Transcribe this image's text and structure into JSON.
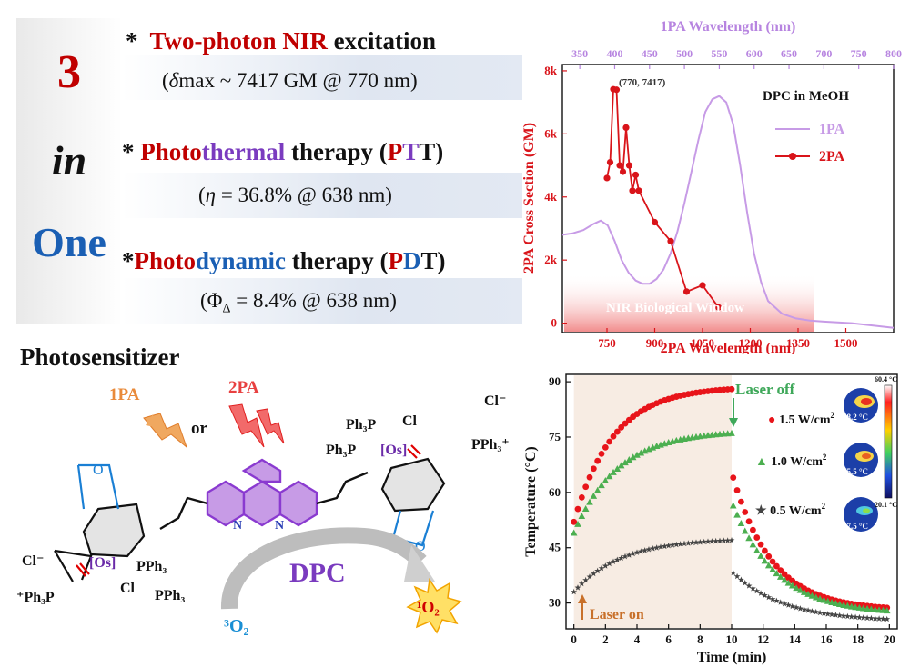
{
  "claims": {
    "big_number": "3",
    "big_in": "in",
    "big_one": "One",
    "item1": {
      "star": "*",
      "a": "Two-photon ",
      "b": "NIR",
      "c": " excitation",
      "detail_pre": "(",
      "detail_sym": "δ",
      "detail_post": "max ~ 7417 GM @ 770 nm)"
    },
    "item2": {
      "star": "*",
      "a": "Photo",
      "b": "thermal",
      "c": " therapy (",
      "d": "P",
      "e": "T",
      "f": "T",
      "g": ")",
      "detail_pre": "(",
      "detail_sym": "η",
      "detail_post": " = 36.8% @ 638 nm)"
    },
    "item3": {
      "star": "*",
      "a": "Photo",
      "b": "dynamic",
      "c": " therapy (",
      "d": "P",
      "e": "D",
      "f": "T",
      "g": ")",
      "detail_pre": "(Φ",
      "detail_sub": "Δ",
      "detail_post": " = 8.4% @ 638 nm)"
    }
  },
  "photosensitizer": {
    "title": "Photosensitizer",
    "one_pa": "1PA",
    "or": "or",
    "two_pa": "2PA",
    "dpc": "DPC",
    "cl_minus": "Cl⁻",
    "n_label": "N",
    "os_label": "[Os]",
    "cl": "Cl",
    "ph3p": "Ph₃P",
    "pph3": "PPh₃",
    "pph3_plus": "PPh₃⁺",
    "plus_ph3p": "⁺Ph₃P",
    "o_label": "O",
    "triplet_o2": "³O₂",
    "singlet_o2": "¹O₂"
  },
  "colors": {
    "red": "#c00000",
    "purple": "#7a3bbf",
    "blue": "#1a5fb4",
    "orange": "#e98a3a",
    "green": "#5cb85c"
  },
  "chart_data": [
    {
      "type": "line",
      "title": "",
      "legend_title": "DPC in MeOH",
      "annotation": "(770, 7417)",
      "window_label": "NIR Biological Window",
      "xlabel": "2PA Wavelength (nm)",
      "x2label": "1PA Wavelength (nm)",
      "ylabel": "2PA Cross Section (GM)",
      "xlim": [
        610,
        1650
      ],
      "x2lim": [
        325,
        800
      ],
      "ylim": [
        -300,
        8200
      ],
      "xticks": [
        750,
        900,
        1050,
        1200,
        1350,
        1500
      ],
      "x2ticks": [
        350,
        400,
        450,
        500,
        550,
        600,
        650,
        700,
        750,
        800
      ],
      "yticks": [
        0,
        2000,
        4000,
        6000,
        8000
      ],
      "ytick_labels": [
        "0",
        "2k",
        "4k",
        "6k",
        "8k"
      ],
      "series": [
        {
          "name": "1PA",
          "axis": "x2",
          "color": "#c79be6",
          "x": [
            325,
            340,
            355,
            370,
            380,
            390,
            400,
            410,
            420,
            430,
            440,
            450,
            460,
            470,
            480,
            490,
            500,
            510,
            520,
            530,
            540,
            550,
            560,
            570,
            580,
            590,
            600,
            610,
            620,
            640,
            660,
            680,
            700,
            740,
            800
          ],
          "y": [
            2800,
            2850,
            2950,
            3150,
            3250,
            3100,
            2600,
            2000,
            1600,
            1350,
            1250,
            1250,
            1400,
            1700,
            2200,
            2900,
            3800,
            4800,
            5800,
            6700,
            7100,
            7200,
            7000,
            6300,
            5000,
            3500,
            2200,
            1300,
            700,
            300,
            150,
            80,
            50,
            0,
            -150
          ]
        },
        {
          "name": "2PA",
          "axis": "x",
          "color": "#d9141a",
          "x": [
            750,
            760,
            770,
            780,
            790,
            800,
            810,
            820,
            830,
            840,
            850,
            900,
            950,
            1000,
            1050,
            1100
          ],
          "y": [
            4600,
            5100,
            7417,
            7400,
            5000,
            4800,
            6200,
            5000,
            4200,
            4700,
            4200,
            3200,
            2600,
            1000,
            1200,
            500
          ]
        }
      ]
    },
    {
      "type": "scatter",
      "xlabel": "Time (min)",
      "ylabel": "Temperature (°C)",
      "xlim": [
        -0.5,
        20.5
      ],
      "ylim": [
        23,
        92
      ],
      "xticks": [
        0,
        2,
        4,
        6,
        8,
        10,
        12,
        14,
        16,
        18,
        20
      ],
      "yticks": [
        30,
        45,
        60,
        75,
        90
      ],
      "annotations": {
        "laser_on": "Laser on",
        "laser_off": "Laser off"
      },
      "colorbar": {
        "max": "60.4 °C",
        "min": "20.1 °C"
      },
      "series": [
        {
          "name": "1.5 W/cm²",
          "power": "1.5 W/cm",
          "sup": "2",
          "marker": "circle",
          "color": "#e8141a",
          "t_peak": 88,
          "t_start": 52,
          "t_end": 28,
          "tau_heat": 2.5,
          "tau_cool": 2.5,
          "thermal_image": "88.2 °C"
        },
        {
          "name": "1.0 W/cm²",
          "power": "1.0 W/cm",
          "sup": "2",
          "marker": "triangle",
          "color": "#4caf50",
          "t_peak": 76,
          "t_start": 49,
          "t_end": 27,
          "tau_heat": 2.8,
          "tau_cool": 2.8,
          "thermal_image": "75.5 °C"
        },
        {
          "name": "0.5 W/cm²",
          "power": "0.5 W/cm",
          "sup": "2",
          "marker": "star",
          "color": "#444444",
          "t_peak": 47,
          "t_start": 33,
          "t_end": 25,
          "tau_heat": 3.0,
          "tau_cool": 3.2,
          "thermal_image": "47.5 °C"
        }
      ]
    }
  ]
}
